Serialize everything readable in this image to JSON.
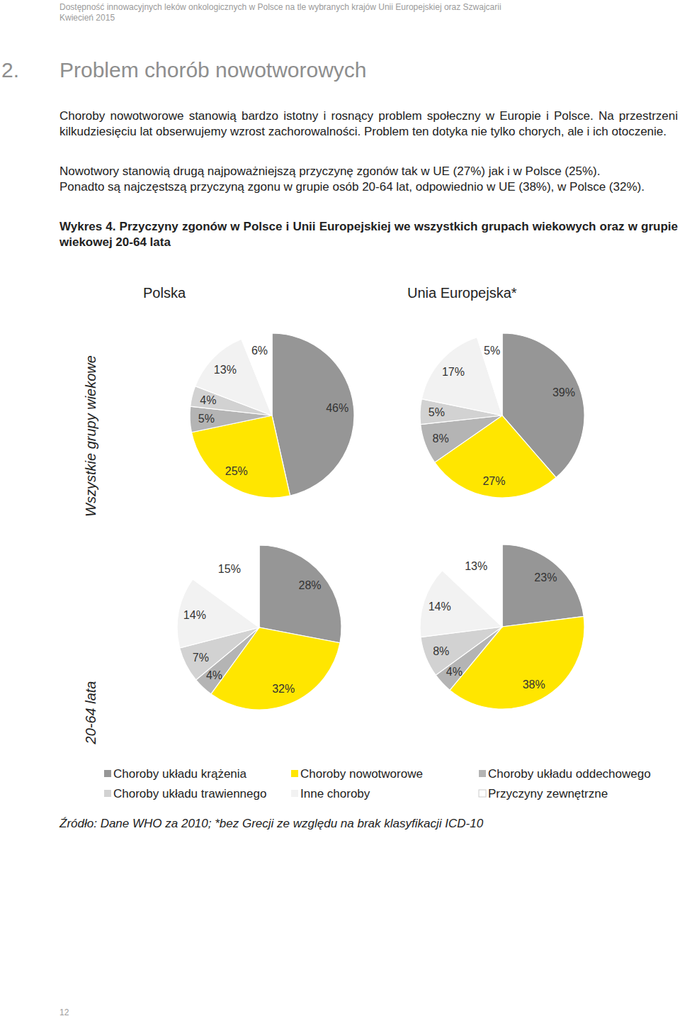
{
  "header": {
    "title": "Dostępność innowacyjnych leków onkologicznych w Polsce na tle wybranych krajów Unii Europejskiej oraz Szwajcarii",
    "date": "Kwiecień 2015"
  },
  "section": {
    "number": "2.",
    "title": "Problem chorób nowotworowych"
  },
  "paragraphs": [
    "Choroby nowotworowe stanowią bardzo istotny i rosnący problem społeczny w Europie i Polsce. Na przestrzeni kilkudziesięciu lat obserwujemy wzrost zachorowalności. Problem ten dotyka nie tylko chorych, ale i ich otoczenie.",
    "Nowotwory stanowią drugą najpoważniejszą przyczynę zgonów tak w UE (27%) jak i w Polsce (25%).",
    "Ponadto są najczęstszą przyczyną zgonu w grupie osób 20-64 lat, odpowiednio w UE (38%), w Polsce (32%)."
  ],
  "figure": {
    "caption": "Wykres 4. Przyczyny zgonów w Polsce i Unii Europejskiej we wszystkich grupach wiekowych oraz w grupie wiekowej 20-64 lata",
    "column_titles": [
      "Polska",
      "Unia Europejska*"
    ],
    "row_titles": [
      "Wszystkie grupy wiekowe",
      "20-64 lata"
    ],
    "source": "Źródło: Dane WHO za 2010; *bez Grecji ze względu na brak klasyfikacji ICD-10"
  },
  "chart_data": [
    {
      "type": "pie",
      "categories": [
        "Choroby układu krążenia",
        "Choroby nowotworowe",
        "Choroby układu oddechowego",
        "Choroby układu trawiennego",
        "Inne choroby",
        "Przyczyny zewnętrzne"
      ],
      "colors": [
        "#969696",
        "#ffe600",
        "#b4b4b4",
        "#d2d2d2",
        "#f2f2f2",
        "#ffffff"
      ],
      "values": [
        46,
        25,
        5,
        4,
        13,
        6
      ],
      "value_labels": [
        "46%",
        "25%",
        "5%",
        "4%",
        "13%",
        "6%"
      ],
      "data_labels": true
    },
    {
      "type": "pie",
      "categories": [
        "Choroby układu krążenia",
        "Choroby nowotworowe",
        "Choroby układu oddechowego",
        "Choroby układu trawiennego",
        "Inne choroby",
        "Przyczyny zewnętrzne"
      ],
      "colors": [
        "#969696",
        "#ffe600",
        "#b4b4b4",
        "#d2d2d2",
        "#f2f2f2",
        "#ffffff"
      ],
      "values": [
        39,
        27,
        8,
        5,
        17,
        5
      ],
      "value_labels": [
        "39%",
        "27%",
        "8%",
        "5%",
        "17%",
        "5%"
      ],
      "data_labels": true
    },
    {
      "type": "pie",
      "categories": [
        "Choroby układu krążenia",
        "Choroby nowotworowe",
        "Choroby układu oddechowego",
        "Choroby układu trawiennego",
        "Inne choroby",
        "Przyczyny zewnętrzne"
      ],
      "colors": [
        "#969696",
        "#ffe600",
        "#b4b4b4",
        "#d2d2d2",
        "#f2f2f2",
        "#ffffff"
      ],
      "values": [
        28,
        32,
        4,
        7,
        14,
        15
      ],
      "value_labels": [
        "28%",
        "32%",
        "4%",
        "7%",
        "14%",
        "15%"
      ],
      "data_labels": true
    },
    {
      "type": "pie",
      "categories": [
        "Choroby układu krążenia",
        "Choroby nowotworowe",
        "Choroby układu oddechowego",
        "Choroby układu trawiennego",
        "Inne choroby",
        "Przyczyny zewnętrzne"
      ],
      "colors": [
        "#969696",
        "#ffe600",
        "#b4b4b4",
        "#d2d2d2",
        "#f2f2f2",
        "#ffffff"
      ],
      "values": [
        23,
        38,
        4,
        8,
        14,
        13
      ],
      "value_labels": [
        "23%",
        "38%",
        "4%",
        "8%",
        "14%",
        "13%"
      ],
      "data_labels": true
    }
  ],
  "page_number": 12
}
